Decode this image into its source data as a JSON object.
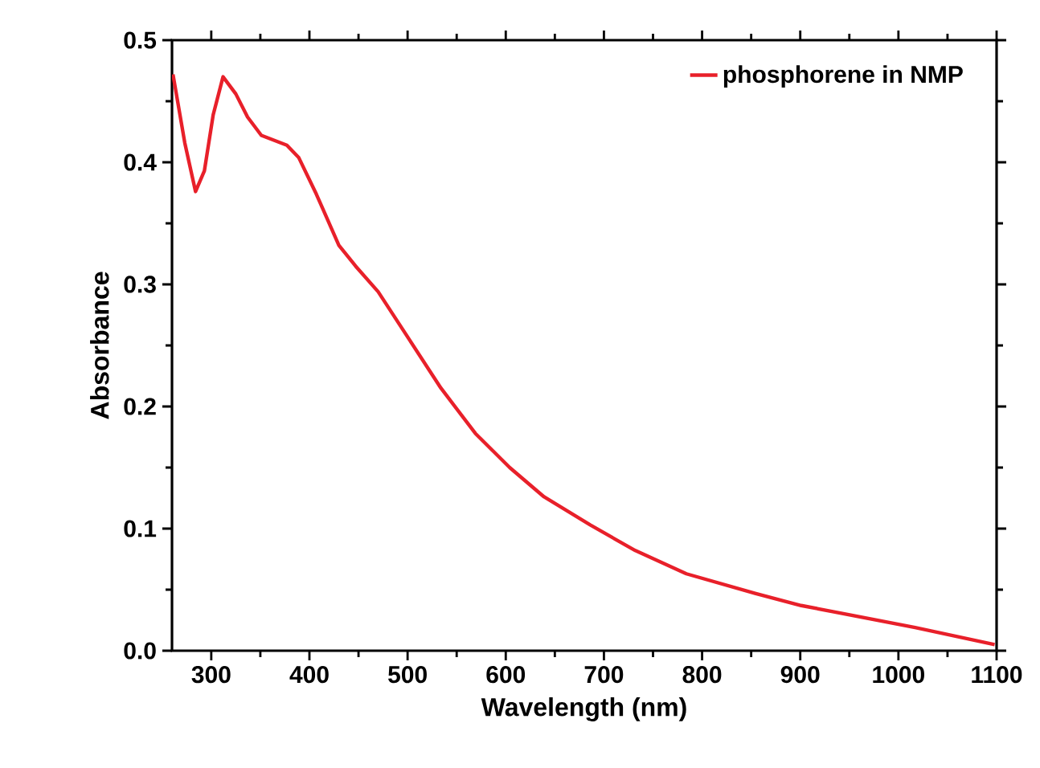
{
  "chart_data": {
    "type": "line",
    "xlabel": "Wavelength (nm)",
    "ylabel": "Absorbance",
    "legend": "top right",
    "grid": false,
    "xlim": [
      260,
      1100
    ],
    "ylim": [
      0,
      0.5
    ],
    "xticks": [
      300,
      400,
      500,
      600,
      700,
      800,
      900,
      1000,
      1100
    ],
    "yticks": [
      {
        "value": 0,
        "label": "0.0"
      },
      {
        "value": 0.1,
        "label": "0.1"
      },
      {
        "value": 0.2,
        "label": "0.2"
      },
      {
        "value": 0.3,
        "label": "0.3"
      },
      {
        "value": 0.4,
        "label": "0.4"
      },
      {
        "value": 0.5,
        "label": "0.5"
      }
    ],
    "series": [
      {
        "name": "phosphorene in NMP",
        "color": "#e8202a",
        "x": [
          261,
          273,
          284,
          293,
          302,
          312,
          325,
          337,
          351,
          377,
          389,
          407,
          430,
          447,
          470,
          500,
          534,
          569,
          604,
          639,
          686,
          732,
          784,
          854,
          901,
          959,
          1017,
          1098
        ],
        "values": [
          0.472,
          0.416,
          0.376,
          0.393,
          0.439,
          0.47,
          0.456,
          0.437,
          0.422,
          0.414,
          0.404,
          0.374,
          0.332,
          0.315,
          0.294,
          0.257,
          0.215,
          0.178,
          0.15,
          0.126,
          0.103,
          0.082,
          0.063,
          0.047,
          0.037,
          0.028,
          0.019,
          0.005
        ]
      }
    ]
  }
}
